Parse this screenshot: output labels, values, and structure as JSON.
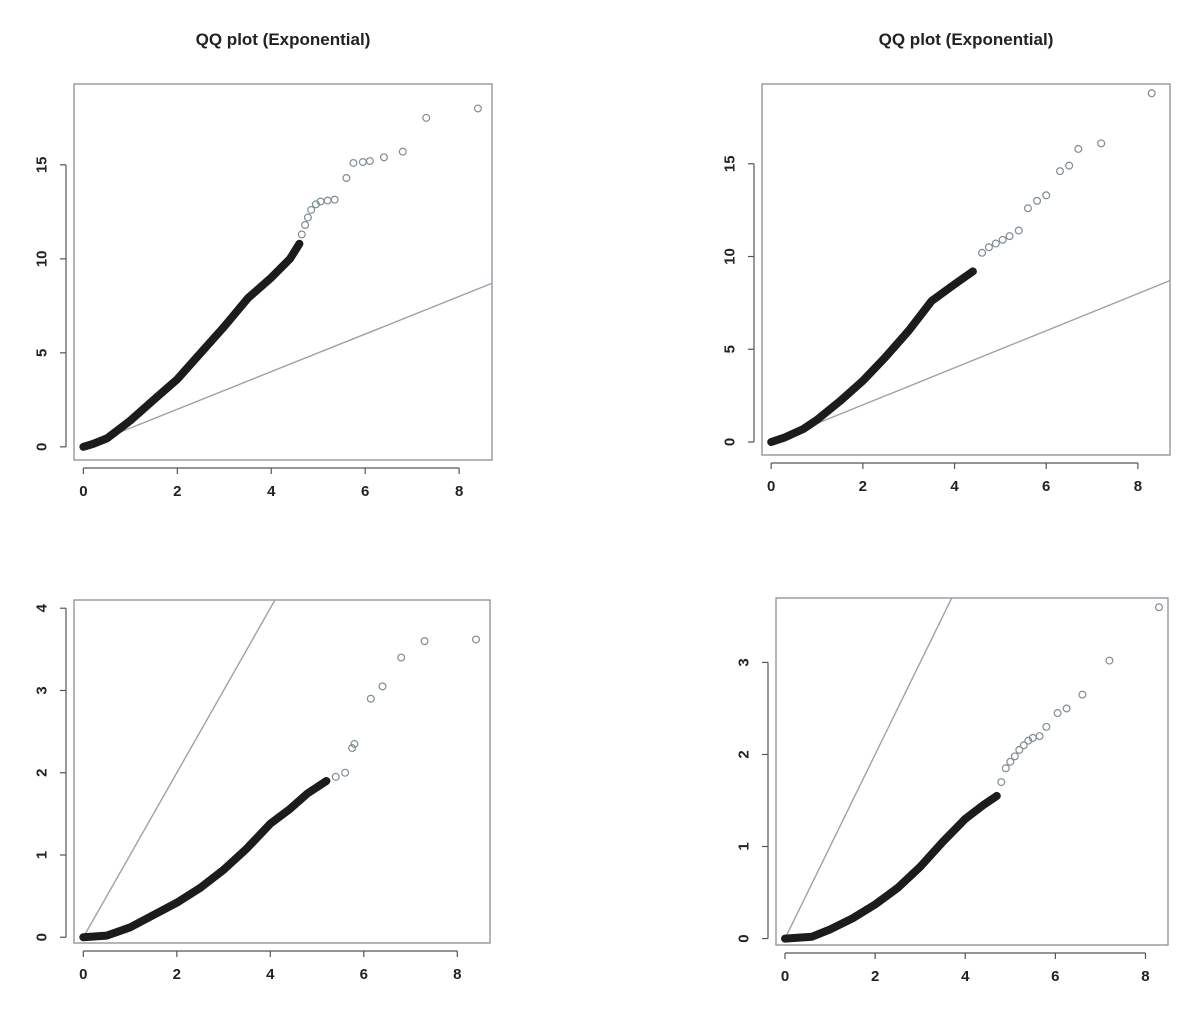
{
  "chart_data": [
    {
      "type": "scatter",
      "title": "QQ plot (Exponential)",
      "xlabel": "",
      "ylabel": "",
      "xlim": [
        -0.2,
        8.7
      ],
      "ylim": [
        -0.7,
        19.3
      ],
      "xticks": [
        0,
        2,
        4,
        6,
        8
      ],
      "yticks": [
        0,
        5,
        10,
        15
      ],
      "reference_line": {
        "intercept": 0,
        "slope": 1
      },
      "dense_curve": [
        [
          0,
          0
        ],
        [
          0.2,
          0.15
        ],
        [
          0.5,
          0.45
        ],
        [
          1.0,
          1.4
        ],
        [
          1.5,
          2.5
        ],
        [
          2.0,
          3.6
        ],
        [
          2.5,
          5.0
        ],
        [
          3.0,
          6.4
        ],
        [
          3.5,
          7.9
        ],
        [
          4.0,
          9.0
        ],
        [
          4.4,
          10.0
        ],
        [
          4.6,
          10.8
        ]
      ],
      "points": [
        [
          4.65,
          11.3
        ],
        [
          4.72,
          11.8
        ],
        [
          4.78,
          12.2
        ],
        [
          4.85,
          12.6
        ],
        [
          4.95,
          12.9
        ],
        [
          5.05,
          13.05
        ],
        [
          5.2,
          13.1
        ],
        [
          5.35,
          13.15
        ],
        [
          5.6,
          14.3
        ],
        [
          5.75,
          15.1
        ],
        [
          5.95,
          15.15
        ],
        [
          6.1,
          15.2
        ],
        [
          6.4,
          15.4
        ],
        [
          6.8,
          15.7
        ],
        [
          7.3,
          17.5
        ],
        [
          8.4,
          18.0
        ]
      ],
      "grid": false
    },
    {
      "type": "scatter",
      "title": "QQ plot (Exponential)",
      "xlabel": "",
      "ylabel": "",
      "xlim": [
        -0.2,
        8.7
      ],
      "ylim": [
        -0.7,
        19.3
      ],
      "xticks": [
        0,
        2,
        4,
        6,
        8
      ],
      "yticks": [
        0,
        5,
        10,
        15
      ],
      "reference_line": {
        "intercept": 0,
        "slope": 1
      },
      "dense_curve": [
        [
          0,
          0
        ],
        [
          0.3,
          0.25
        ],
        [
          0.7,
          0.7
        ],
        [
          1.0,
          1.2
        ],
        [
          1.5,
          2.2
        ],
        [
          2.0,
          3.3
        ],
        [
          2.5,
          4.6
        ],
        [
          3.0,
          6.0
        ],
        [
          3.5,
          7.6
        ],
        [
          4.0,
          8.5
        ],
        [
          4.4,
          9.2
        ]
      ],
      "points": [
        [
          4.6,
          10.2
        ],
        [
          4.75,
          10.5
        ],
        [
          4.9,
          10.7
        ],
        [
          5.05,
          10.9
        ],
        [
          5.2,
          11.1
        ],
        [
          5.4,
          11.4
        ],
        [
          5.6,
          12.6
        ],
        [
          5.8,
          13.0
        ],
        [
          6.0,
          13.3
        ],
        [
          6.3,
          14.6
        ],
        [
          6.5,
          14.9
        ],
        [
          6.7,
          15.8
        ],
        [
          7.2,
          16.1
        ],
        [
          8.3,
          18.8
        ]
      ],
      "grid": false
    },
    {
      "type": "scatter",
      "title": "",
      "xlabel": "",
      "ylabel": "",
      "xlim": [
        -0.2,
        8.7
      ],
      "ylim": [
        -0.07,
        4.1
      ],
      "xticks": [
        0,
        2,
        4,
        6,
        8
      ],
      "yticks": [
        0,
        1,
        2,
        3,
        4
      ],
      "reference_line": {
        "intercept": 0,
        "slope": 1
      },
      "dense_curve": [
        [
          0,
          0
        ],
        [
          0.5,
          0.02
        ],
        [
          1.0,
          0.12
        ],
        [
          1.5,
          0.27
        ],
        [
          2.0,
          0.42
        ],
        [
          2.5,
          0.6
        ],
        [
          3.0,
          0.82
        ],
        [
          3.5,
          1.08
        ],
        [
          4.0,
          1.38
        ],
        [
          4.4,
          1.55
        ],
        [
          4.8,
          1.75
        ],
        [
          5.2,
          1.9
        ]
      ],
      "points": [
        [
          5.4,
          1.95
        ],
        [
          5.6,
          2.0
        ],
        [
          5.75,
          2.3
        ],
        [
          5.8,
          2.35
        ],
        [
          6.15,
          2.9
        ],
        [
          6.4,
          3.05
        ],
        [
          6.8,
          3.4
        ],
        [
          7.3,
          3.6
        ],
        [
          8.4,
          3.62
        ]
      ],
      "grid": false
    },
    {
      "type": "scatter",
      "title": "",
      "xlabel": "",
      "ylabel": "",
      "xlim": [
        -0.2,
        8.5
      ],
      "ylim": [
        -0.07,
        3.7
      ],
      "xticks": [
        0,
        2,
        4,
        6,
        8
      ],
      "yticks": [
        0,
        1,
        2,
        3
      ],
      "reference_line": {
        "intercept": 0,
        "slope": 1
      },
      "dense_curve": [
        [
          0,
          0
        ],
        [
          0.6,
          0.02
        ],
        [
          1.0,
          0.1
        ],
        [
          1.5,
          0.22
        ],
        [
          2.0,
          0.37
        ],
        [
          2.5,
          0.55
        ],
        [
          3.0,
          0.78
        ],
        [
          3.5,
          1.05
        ],
        [
          4.0,
          1.3
        ],
        [
          4.4,
          1.45
        ],
        [
          4.7,
          1.55
        ]
      ],
      "points": [
        [
          4.8,
          1.7
        ],
        [
          4.9,
          1.85
        ],
        [
          5.0,
          1.92
        ],
        [
          5.1,
          1.98
        ],
        [
          5.2,
          2.05
        ],
        [
          5.3,
          2.1
        ],
        [
          5.4,
          2.15
        ],
        [
          5.5,
          2.18
        ],
        [
          5.65,
          2.2
        ],
        [
          5.8,
          2.3
        ],
        [
          6.05,
          2.45
        ],
        [
          6.25,
          2.5
        ],
        [
          6.6,
          2.65
        ],
        [
          7.2,
          3.02
        ],
        [
          8.3,
          3.6
        ]
      ],
      "grid": false
    }
  ]
}
